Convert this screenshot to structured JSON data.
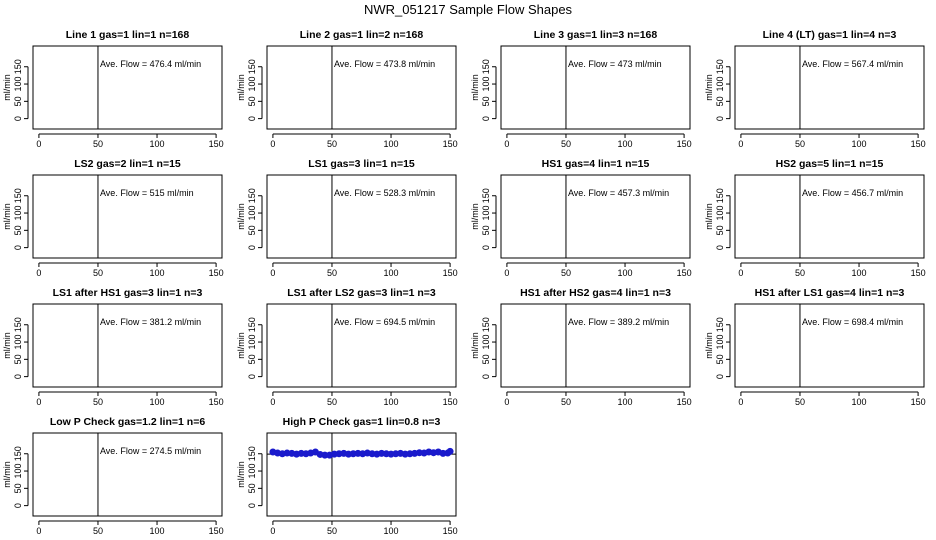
{
  "title": "NWR_051217  Sample Flow Shapes",
  "chart_data": [
    {
      "type": "scatter",
      "title": "Line 1 gas=1 lin=1 n=168",
      "ylabel": "ml/min",
      "annotation": "Ave. Flow =  476.4  ml/min",
      "xlim": [
        -5,
        155
      ],
      "ylim": [
        -30,
        210
      ],
      "xticks": [
        0,
        50,
        100,
        150
      ],
      "yticks": [
        0,
        50,
        100,
        150
      ],
      "vline": 50,
      "hline": null,
      "points": []
    },
    {
      "type": "scatter",
      "title": "Line 2 gas=1 lin=2 n=168",
      "ylabel": "ml/min",
      "annotation": "Ave. Flow =  473.8  ml/min",
      "xlim": [
        -5,
        155
      ],
      "ylim": [
        -30,
        210
      ],
      "xticks": [
        0,
        50,
        100,
        150
      ],
      "yticks": [
        0,
        50,
        100,
        150
      ],
      "vline": 50,
      "hline": null,
      "points": []
    },
    {
      "type": "scatter",
      "title": "Line 3 gas=1 lin=3 n=168",
      "ylabel": "ml/min",
      "annotation": "Ave. Flow =  473  ml/min",
      "xlim": [
        -5,
        155
      ],
      "ylim": [
        -30,
        210
      ],
      "xticks": [
        0,
        50,
        100,
        150
      ],
      "yticks": [
        0,
        50,
        100,
        150
      ],
      "vline": 50,
      "hline": null,
      "points": []
    },
    {
      "type": "scatter",
      "title": "Line 4 (LT) gas=1 lin=4 n=3",
      "ylabel": "ml/min",
      "annotation": "Ave. Flow =  567.4  ml/min",
      "xlim": [
        -5,
        155
      ],
      "ylim": [
        -30,
        210
      ],
      "xticks": [
        0,
        50,
        100,
        150
      ],
      "yticks": [
        0,
        50,
        100,
        150
      ],
      "vline": 50,
      "hline": null,
      "points": []
    },
    {
      "type": "scatter",
      "title": "LS2 gas=2 lin=1 n=15",
      "ylabel": "ml/min",
      "annotation": "Ave. Flow =  515  ml/min",
      "xlim": [
        -5,
        155
      ],
      "ylim": [
        -30,
        210
      ],
      "xticks": [
        0,
        50,
        100,
        150
      ],
      "yticks": [
        0,
        50,
        100,
        150
      ],
      "vline": 50,
      "hline": null,
      "points": []
    },
    {
      "type": "scatter",
      "title": "LS1 gas=3 lin=1 n=15",
      "ylabel": "ml/min",
      "annotation": "Ave. Flow =  528.3  ml/min",
      "xlim": [
        -5,
        155
      ],
      "ylim": [
        -30,
        210
      ],
      "xticks": [
        0,
        50,
        100,
        150
      ],
      "yticks": [
        0,
        50,
        100,
        150
      ],
      "vline": 50,
      "hline": null,
      "points": []
    },
    {
      "type": "scatter",
      "title": "HS1 gas=4 lin=1 n=15",
      "ylabel": "ml/min",
      "annotation": "Ave. Flow =  457.3  ml/min",
      "xlim": [
        -5,
        155
      ],
      "ylim": [
        -30,
        210
      ],
      "xticks": [
        0,
        50,
        100,
        150
      ],
      "yticks": [
        0,
        50,
        100,
        150
      ],
      "vline": 50,
      "hline": null,
      "points": []
    },
    {
      "type": "scatter",
      "title": "HS2 gas=5 lin=1 n=15",
      "ylabel": "ml/min",
      "annotation": "Ave. Flow =  456.7  ml/min",
      "xlim": [
        -5,
        155
      ],
      "ylim": [
        -30,
        210
      ],
      "xticks": [
        0,
        50,
        100,
        150
      ],
      "yticks": [
        0,
        50,
        100,
        150
      ],
      "vline": 50,
      "hline": null,
      "points": []
    },
    {
      "type": "scatter",
      "title": "LS1 after HS1 gas=3 lin=1 n=3",
      "ylabel": "ml/min",
      "annotation": "Ave. Flow =  381.2  ml/min",
      "xlim": [
        -5,
        155
      ],
      "ylim": [
        -30,
        210
      ],
      "xticks": [
        0,
        50,
        100,
        150
      ],
      "yticks": [
        0,
        50,
        100,
        150
      ],
      "vline": 50,
      "hline": null,
      "points": []
    },
    {
      "type": "scatter",
      "title": "LS1 after LS2 gas=3 lin=1 n=3",
      "ylabel": "ml/min",
      "annotation": "Ave. Flow =  694.5  ml/min",
      "xlim": [
        -5,
        155
      ],
      "ylim": [
        -30,
        210
      ],
      "xticks": [
        0,
        50,
        100,
        150
      ],
      "yticks": [
        0,
        50,
        100,
        150
      ],
      "vline": 50,
      "hline": null,
      "points": []
    },
    {
      "type": "scatter",
      "title": "HS1 after HS2 gas=4 lin=1 n=3",
      "ylabel": "ml/min",
      "annotation": "Ave. Flow =  389.2  ml/min",
      "xlim": [
        -5,
        155
      ],
      "ylim": [
        -30,
        210
      ],
      "xticks": [
        0,
        50,
        100,
        150
      ],
      "yticks": [
        0,
        50,
        100,
        150
      ],
      "vline": 50,
      "hline": null,
      "points": []
    },
    {
      "type": "scatter",
      "title": "HS1 after LS1 gas=4 lin=1 n=3",
      "ylabel": "ml/min",
      "annotation": "Ave. Flow =  698.4  ml/min",
      "xlim": [
        -5,
        155
      ],
      "ylim": [
        -30,
        210
      ],
      "xticks": [
        0,
        50,
        100,
        150
      ],
      "yticks": [
        0,
        50,
        100,
        150
      ],
      "vline": 50,
      "hline": null,
      "points": []
    },
    {
      "type": "scatter",
      "title": "Low P Check gas=1.2 lin=1 n=6",
      "ylabel": "ml/min",
      "annotation": "Ave. Flow =  274.5  ml/min",
      "xlim": [
        -5,
        155
      ],
      "ylim": [
        -30,
        210
      ],
      "xticks": [
        0,
        50,
        100,
        150
      ],
      "yticks": [
        0,
        50,
        100,
        150
      ],
      "vline": 50,
      "hline": null,
      "points": []
    },
    {
      "type": "scatter",
      "title": "High P Check gas=1 lin=0.8 n=3",
      "ylabel": "ml/min",
      "annotation": "",
      "xlim": [
        -5,
        155
      ],
      "ylim": [
        -30,
        210
      ],
      "xticks": [
        0,
        50,
        100,
        150
      ],
      "yticks": [
        0,
        50,
        100,
        150
      ],
      "vline": 50,
      "hline": 149,
      "point_color": "#1a1acc",
      "points": [
        [
          0,
          155
        ],
        [
          4,
          152
        ],
        [
          8,
          150
        ],
        [
          12,
          152
        ],
        [
          16,
          151
        ],
        [
          20,
          149
        ],
        [
          24,
          151
        ],
        [
          28,
          150
        ],
        [
          32,
          152
        ],
        [
          36,
          155
        ],
        [
          40,
          148
        ],
        [
          44,
          146
        ],
        [
          48,
          146
        ],
        [
          52,
          149
        ],
        [
          56,
          150
        ],
        [
          60,
          151
        ],
        [
          64,
          149
        ],
        [
          68,
          150
        ],
        [
          72,
          151
        ],
        [
          76,
          150
        ],
        [
          80,
          152
        ],
        [
          84,
          150
        ],
        [
          88,
          149
        ],
        [
          92,
          151
        ],
        [
          96,
          150
        ],
        [
          100,
          149
        ],
        [
          104,
          150
        ],
        [
          108,
          151
        ],
        [
          112,
          149
        ],
        [
          116,
          150
        ],
        [
          120,
          151
        ],
        [
          124,
          153
        ],
        [
          128,
          152
        ],
        [
          132,
          155
        ],
        [
          136,
          153
        ],
        [
          140,
          155
        ],
        [
          144,
          151
        ],
        [
          148,
          152
        ],
        [
          150,
          157
        ]
      ]
    }
  ]
}
